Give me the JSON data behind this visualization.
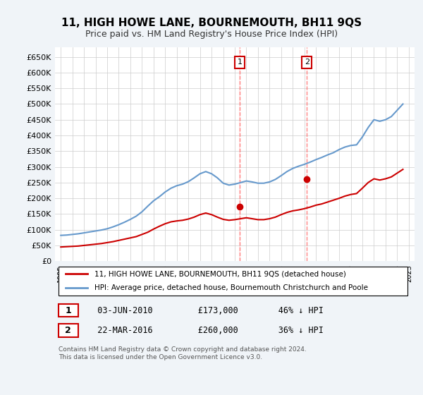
{
  "title": "11, HIGH HOWE LANE, BOURNEMOUTH, BH11 9QS",
  "subtitle": "Price paid vs. HM Land Registry's House Price Index (HPI)",
  "legend_line1": "11, HIGH HOWE LANE, BOURNEMOUTH, BH11 9QS (detached house)",
  "legend_line2": "HPI: Average price, detached house, Bournemouth Christchurch and Poole",
  "annotation1": [
    "1",
    "03-JUN-2010",
    "£173,000",
    "46% ↓ HPI"
  ],
  "annotation2": [
    "2",
    "22-MAR-2016",
    "£260,000",
    "36% ↓ HPI"
  ],
  "footer": "Contains HM Land Registry data © Crown copyright and database right 2024.\nThis data is licensed under the Open Government Licence v3.0.",
  "red_color": "#cc0000",
  "blue_color": "#6699cc",
  "marker1_x": 2010.42,
  "marker1_y": 173000,
  "marker2_x": 2016.22,
  "marker2_y": 260000,
  "ylim": [
    0,
    680000
  ],
  "xlim": [
    1994.5,
    2025.5
  ],
  "yticks": [
    0,
    50000,
    100000,
    150000,
    200000,
    250000,
    300000,
    350000,
    400000,
    450000,
    500000,
    550000,
    600000,
    650000
  ],
  "ytick_labels": [
    "£0",
    "£50K",
    "£100K",
    "£150K",
    "£200K",
    "£250K",
    "£300K",
    "£350K",
    "£400K",
    "£450K",
    "£500K",
    "£550K",
    "£600K",
    "£650K"
  ],
  "xticks": [
    1995,
    1996,
    1997,
    1998,
    1999,
    2000,
    2001,
    2002,
    2003,
    2004,
    2005,
    2006,
    2007,
    2008,
    2009,
    2010,
    2011,
    2012,
    2013,
    2014,
    2015,
    2016,
    2017,
    2018,
    2019,
    2020,
    2021,
    2022,
    2023,
    2024,
    2025
  ],
  "hpi_x": [
    1995,
    1995.5,
    1996,
    1996.5,
    1997,
    1997.5,
    1998,
    1998.5,
    1999,
    1999.5,
    2000,
    2000.5,
    2001,
    2001.5,
    2002,
    2002.5,
    2003,
    2003.5,
    2004,
    2004.5,
    2005,
    2005.5,
    2006,
    2006.5,
    2007,
    2007.5,
    2008,
    2008.5,
    2009,
    2009.5,
    2010,
    2010.5,
    2011,
    2011.5,
    2012,
    2012.5,
    2013,
    2013.5,
    2014,
    2014.5,
    2015,
    2015.5,
    2016,
    2016.5,
    2017,
    2017.5,
    2018,
    2018.5,
    2019,
    2019.5,
    2020,
    2020.5,
    2021,
    2021.5,
    2022,
    2022.5,
    2023,
    2023.5,
    2024,
    2024.5
  ],
  "hpi_y": [
    82000,
    83000,
    85000,
    87000,
    90000,
    93000,
    96000,
    99000,
    103000,
    109000,
    116000,
    124000,
    133000,
    143000,
    157000,
    175000,
    192000,
    205000,
    220000,
    232000,
    240000,
    245000,
    253000,
    265000,
    278000,
    285000,
    278000,
    265000,
    248000,
    242000,
    245000,
    250000,
    255000,
    252000,
    248000,
    248000,
    252000,
    260000,
    272000,
    285000,
    295000,
    302000,
    308000,
    315000,
    323000,
    330000,
    338000,
    345000,
    355000,
    363000,
    368000,
    370000,
    395000,
    425000,
    450000,
    445000,
    450000,
    460000,
    480000,
    500000
  ],
  "red_x": [
    1995,
    1995.5,
    1996,
    1996.5,
    1997,
    1997.5,
    1998,
    1998.5,
    1999,
    1999.5,
    2000,
    2000.5,
    2001,
    2001.5,
    2002,
    2002.5,
    2003,
    2003.5,
    2004,
    2004.5,
    2005,
    2005.5,
    2006,
    2006.5,
    2007,
    2007.5,
    2008,
    2008.5,
    2009,
    2009.5,
    2010,
    2010.5,
    2011,
    2011.5,
    2012,
    2012.5,
    2013,
    2013.5,
    2014,
    2014.5,
    2015,
    2015.5,
    2016,
    2016.5,
    2017,
    2017.5,
    2018,
    2018.5,
    2019,
    2019.5,
    2020,
    2020.5,
    2021,
    2021.5,
    2022,
    2022.5,
    2023,
    2023.5,
    2024,
    2024.5
  ],
  "red_y": [
    45000,
    46000,
    47000,
    48000,
    50000,
    52000,
    54000,
    56000,
    59000,
    62000,
    66000,
    70000,
    74000,
    78000,
    85000,
    92000,
    102000,
    111000,
    119000,
    125000,
    128000,
    130000,
    134000,
    140000,
    148000,
    153000,
    148000,
    140000,
    133000,
    130000,
    132000,
    135000,
    138000,
    135000,
    132000,
    132000,
    135000,
    140000,
    148000,
    155000,
    160000,
    163000,
    167000,
    172000,
    178000,
    182000,
    188000,
    194000,
    200000,
    207000,
    212000,
    215000,
    232000,
    250000,
    262000,
    258000,
    262000,
    268000,
    280000,
    292000
  ],
  "bg_color": "#f0f4f8",
  "plot_bg": "#ffffff",
  "grid_color": "#cccccc"
}
